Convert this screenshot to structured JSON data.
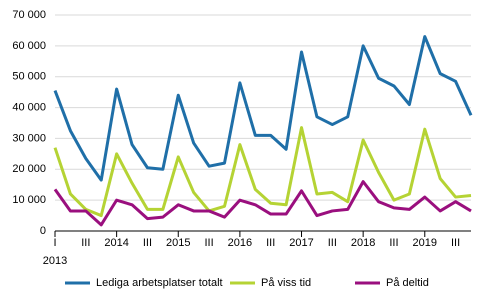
{
  "chart_data": {
    "type": "line",
    "categories": [
      "I",
      null,
      "III",
      null,
      null,
      null,
      "III",
      null,
      null,
      null,
      "III",
      null,
      null,
      null,
      "III",
      null,
      null,
      null,
      "III",
      null,
      null,
      null,
      "III",
      null,
      null,
      null,
      "III",
      null
    ],
    "years": [
      "2013",
      "2014",
      "2015",
      "2016",
      "2017",
      "2018",
      "2019"
    ],
    "series": [
      {
        "name": "Lediga arbetsplatser totalt",
        "color": "#1f6fa8",
        "values": [
          45500,
          32500,
          23500,
          16500,
          46000,
          28000,
          20500,
          20000,
          44000,
          28500,
          21000,
          22000,
          48000,
          31000,
          31000,
          26500,
          58000,
          37000,
          34500,
          37000,
          60000,
          49500,
          47000,
          41000,
          63000,
          51000,
          48500,
          37500
        ]
      },
      {
        "name": "På viss tid",
        "color": "#b5d334",
        "values": [
          27000,
          12000,
          7000,
          5000,
          25000,
          15500,
          7000,
          7000,
          24000,
          12500,
          6500,
          8000,
          28000,
          13500,
          9000,
          8500,
          33500,
          12000,
          12500,
          9500,
          29500,
          19000,
          10000,
          12000,
          33000,
          17000,
          11000,
          11500
        ]
      },
      {
        "name": "På deltid",
        "color": "#9a0f7e",
        "values": [
          13500,
          6500,
          6500,
          2000,
          10000,
          8500,
          4000,
          4500,
          8500,
          6500,
          6500,
          4500,
          10000,
          8500,
          5500,
          5500,
          13000,
          5000,
          6500,
          7000,
          16000,
          9500,
          7500,
          7000,
          11000,
          6500,
          9500,
          6500
        ]
      }
    ],
    "ylim": [
      0,
      70000
    ],
    "yticks": [
      0,
      {
        "value": 10000,
        "label": "10 000"
      },
      {
        "value": 20000,
        "label": "20 000"
      },
      {
        "value": 30000,
        "label": "30 000"
      },
      {
        "value": 40000,
        "label": "40 000"
      },
      {
        "value": 50000,
        "label": "50 000"
      },
      {
        "value": 60000,
        "label": "60 000"
      },
      {
        "value": 70000,
        "label": "70 000"
      }
    ],
    "grid": true
  }
}
